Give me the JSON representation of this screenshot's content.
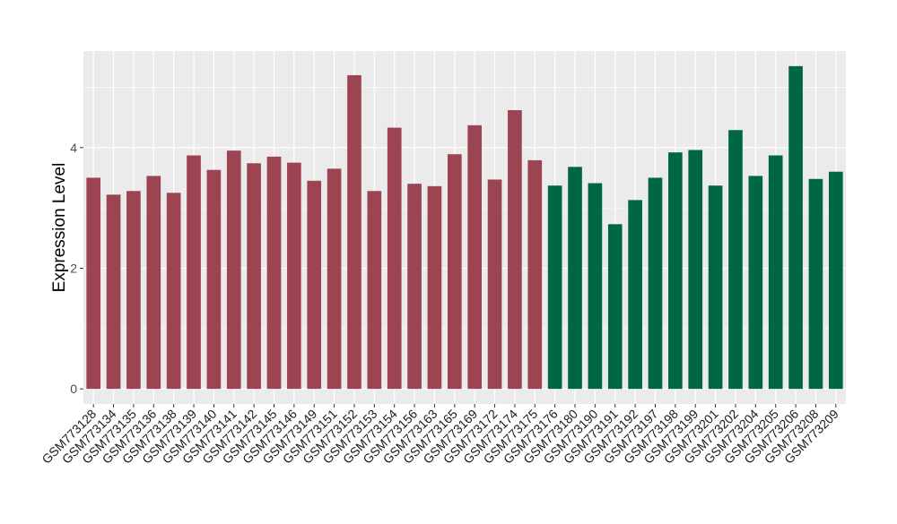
{
  "chart_data": {
    "type": "bar",
    "ylabel": "Expression Level",
    "xlabel": "",
    "ylim": [
      -0.25,
      5.6
    ],
    "yticks": [
      0,
      2,
      4
    ],
    "grid": true,
    "categories": [
      "GSM773128",
      "GSM773134",
      "GSM773135",
      "GSM773136",
      "GSM773138",
      "GSM773139",
      "GSM773140",
      "GSM773141",
      "GSM773142",
      "GSM773145",
      "GSM773146",
      "GSM773149",
      "GSM773151",
      "GSM773152",
      "GSM773153",
      "GSM773154",
      "GSM773156",
      "GSM773163",
      "GSM773165",
      "GSM773169",
      "GSM773172",
      "GSM773174",
      "GSM773175",
      "GSM773176",
      "GSM773180",
      "GSM773190",
      "GSM773191",
      "GSM773192",
      "GSM773197",
      "GSM773198",
      "GSM773199",
      "GSM773201",
      "GSM773202",
      "GSM773204",
      "GSM773205",
      "GSM773206",
      "GSM773208",
      "GSM773209"
    ],
    "values": [
      3.5,
      3.22,
      3.28,
      3.53,
      3.25,
      3.87,
      3.63,
      3.95,
      3.74,
      3.85,
      3.75,
      3.45,
      3.65,
      5.2,
      3.28,
      4.33,
      3.4,
      3.36,
      3.89,
      4.37,
      3.47,
      4.62,
      3.79,
      3.37,
      3.68,
      3.41,
      2.73,
      3.13,
      3.5,
      3.92,
      3.96,
      3.37,
      4.29,
      3.53,
      3.87,
      5.35,
      3.48,
      3.6
    ],
    "group_colors": [
      "#9c4452",
      "#9c4452",
      "#9c4452",
      "#9c4452",
      "#9c4452",
      "#9c4452",
      "#9c4452",
      "#9c4452",
      "#9c4452",
      "#9c4452",
      "#9c4452",
      "#9c4452",
      "#9c4452",
      "#9c4452",
      "#9c4452",
      "#9c4452",
      "#9c4452",
      "#9c4452",
      "#9c4452",
      "#9c4452",
      "#9c4452",
      "#9c4452",
      "#9c4452",
      "#006746",
      "#006746",
      "#006746",
      "#006746",
      "#006746",
      "#006746",
      "#006746",
      "#006746",
      "#006746",
      "#006746",
      "#006746",
      "#006746",
      "#006746",
      "#006746",
      "#006746"
    ]
  }
}
